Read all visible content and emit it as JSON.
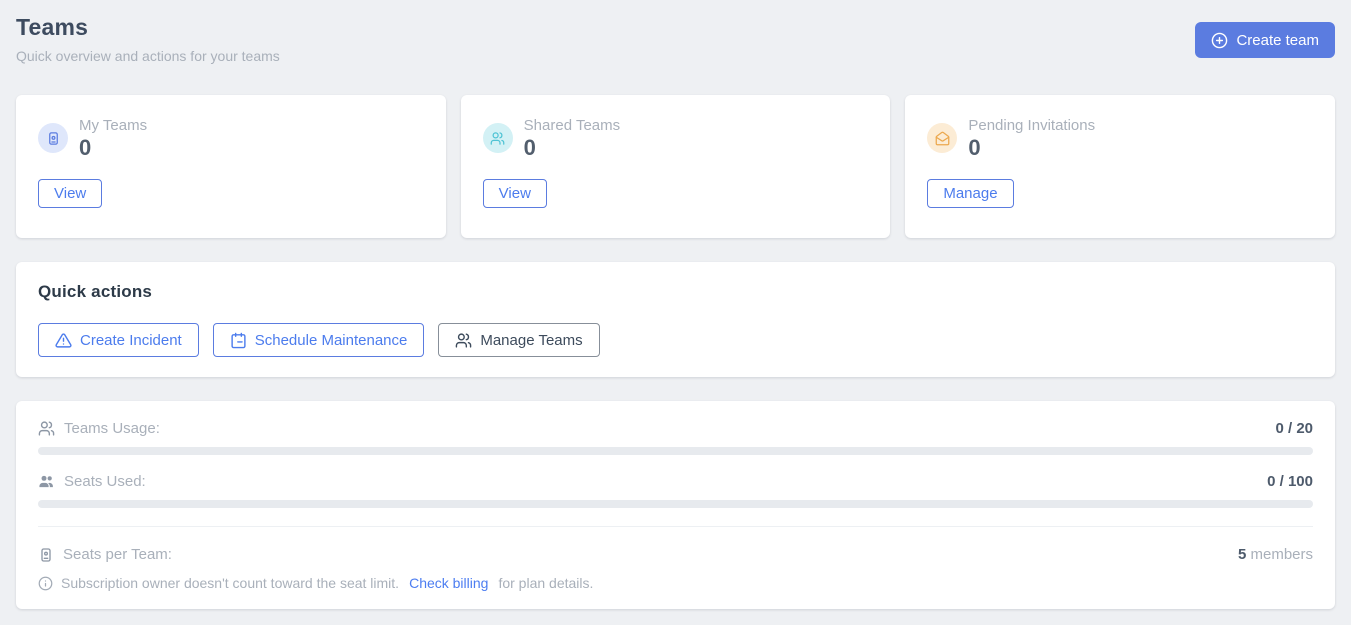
{
  "page": {
    "title": "Teams",
    "subtitle": "Quick overview and actions for your teams",
    "create_team_label": "Create team"
  },
  "stat_cards": [
    {
      "label": "My Teams",
      "value": "0",
      "action": "View",
      "icon": "contact-badge-icon",
      "icon_bg": "#dfe7fb",
      "icon_color": "#5b7ce0"
    },
    {
      "label": "Shared Teams",
      "value": "0",
      "action": "View",
      "icon": "users-icon",
      "icon_bg": "#d3f1f5",
      "icon_color": "#4ec3d4"
    },
    {
      "label": "Pending Invitations",
      "value": "0",
      "action": "Manage",
      "icon": "mail-open-icon",
      "icon_bg": "#fcecd5",
      "icon_color": "#eca84e"
    }
  ],
  "quick_actions": {
    "title": "Quick actions",
    "buttons": [
      {
        "label": "Create Incident",
        "icon": "alert-triangle-icon",
        "style": "blue"
      },
      {
        "label": "Schedule Maintenance",
        "icon": "calendar-icon",
        "style": "blue"
      },
      {
        "label": "Manage Teams",
        "icon": "users-icon",
        "style": "dark"
      }
    ]
  },
  "usage": {
    "teams_usage": {
      "label": "Teams Usage:",
      "value": "0 / 20",
      "progress_pct": 0
    },
    "seats_used": {
      "label": "Seats Used:",
      "value": "0 / 100",
      "progress_pct": 0
    },
    "seats_per_team": {
      "label": "Seats per Team:",
      "value": "5",
      "value_suffix": "members"
    },
    "note": {
      "prefix": "Subscription owner doesn't count toward the seat limit.",
      "link": "Check billing",
      "suffix": "for plan details."
    }
  },
  "colors": {
    "primary_blue": "#5b7ce0",
    "link_blue": "#4c7df1",
    "page_bg": "#eef0f3",
    "progress_track": "#e7eaee"
  }
}
